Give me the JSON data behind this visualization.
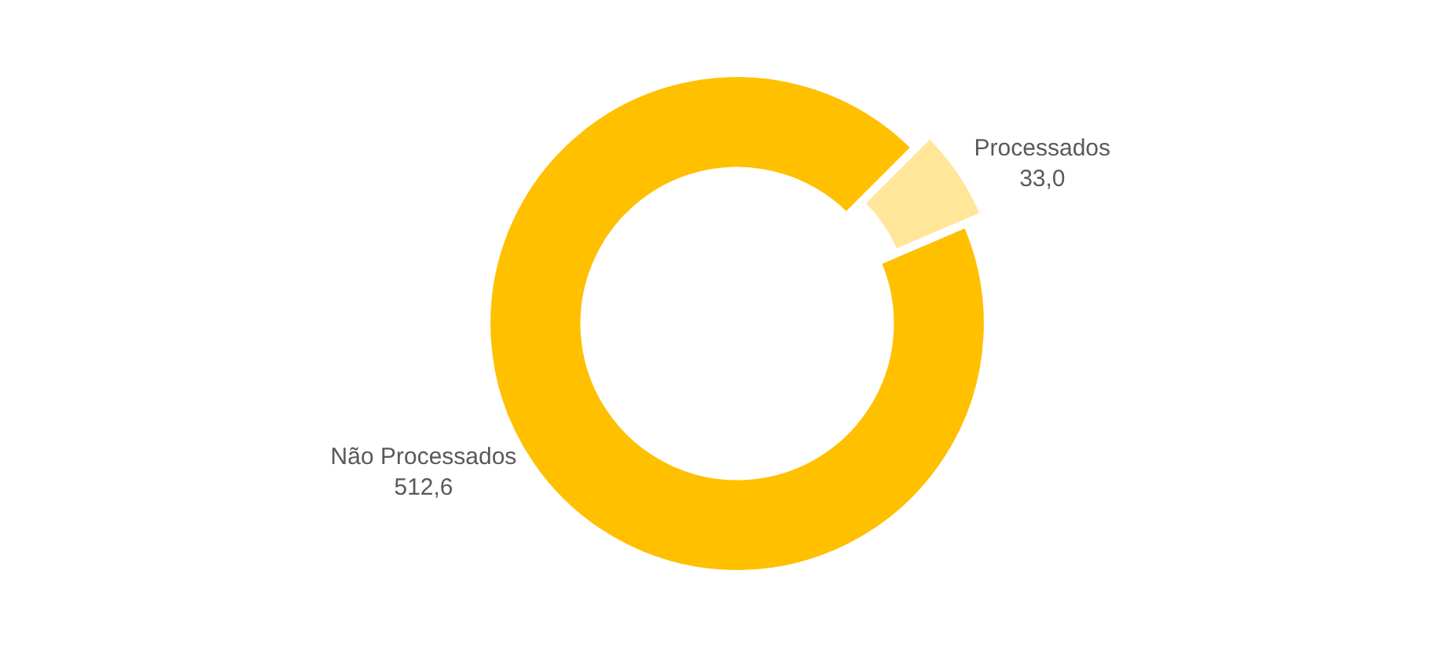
{
  "chart_data": {
    "type": "donut",
    "categories": [
      "Processados",
      "Não Processados"
    ],
    "values": [
      33.0,
      512.6
    ],
    "value_labels": [
      "33,0",
      "512,6"
    ],
    "colors": [
      "#ffe699",
      "#ffc000"
    ]
  }
}
